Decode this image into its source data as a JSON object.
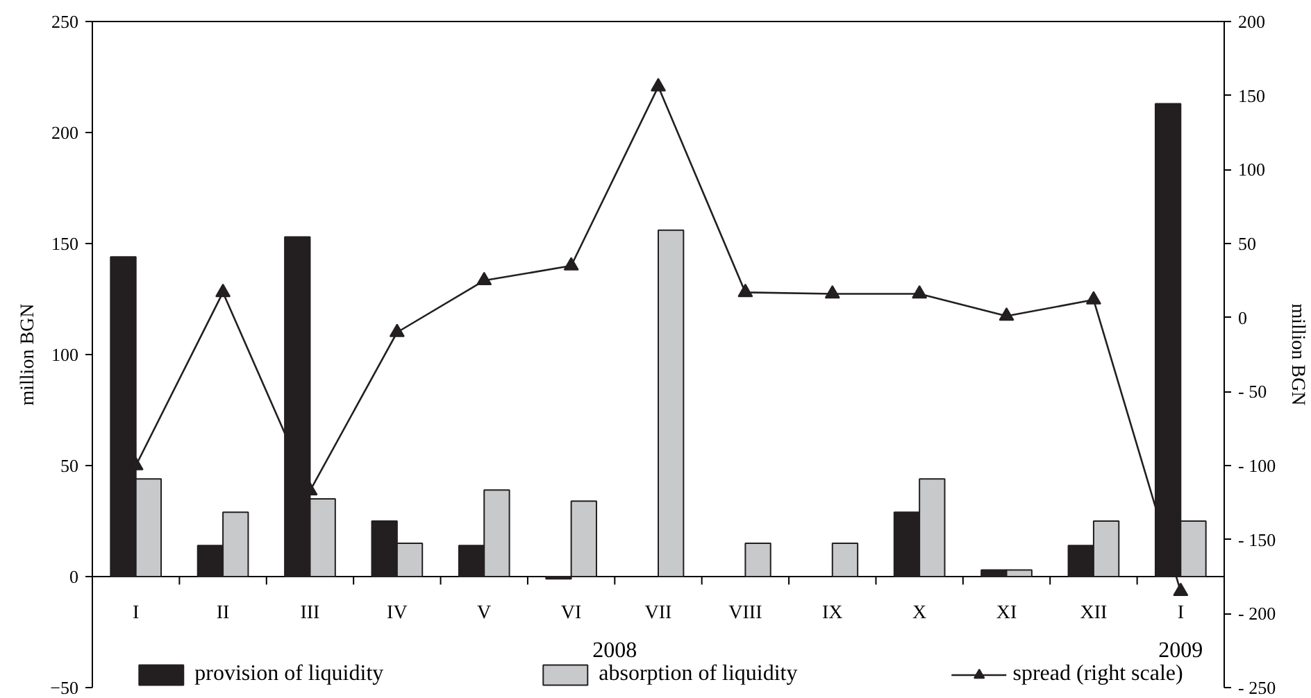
{
  "chart_data": {
    "type": "bar",
    "categories": [
      "I",
      "II",
      "III",
      "IV",
      "V",
      "VI",
      "VII",
      "VIII",
      "IX",
      "X",
      "XI",
      "XII",
      "I"
    ],
    "series": [
      {
        "name": "provision of liquidity",
        "color": "#231f20",
        "values": [
          144,
          14,
          153,
          25,
          14,
          -1,
          null,
          null,
          null,
          29,
          3,
          14,
          213
        ]
      },
      {
        "name": "absorption of liquidity",
        "color": "#c8c9cb",
        "values": [
          44,
          29,
          35,
          15,
          39,
          34,
          156,
          15,
          15,
          44,
          3,
          25,
          25
        ]
      },
      {
        "name": "spread (right scale)",
        "type": "line",
        "axis": "y2",
        "color": "#231f20",
        "marker": "triangle",
        "values": [
          -100,
          17,
          -117,
          -10,
          25,
          35,
          156,
          17,
          16,
          16,
          1,
          12,
          -185
        ]
      }
    ],
    "ylabel": "million BGN",
    "y2label": "million BGN",
    "ylim": [
      -50,
      250
    ],
    "yticks": [
      -50,
      0,
      50,
      100,
      150,
      200,
      250
    ],
    "y2lim": [
      -250,
      200
    ],
    "y2ticks": [
      {
        "value": -250,
        "label": "- 250"
      },
      {
        "value": -200,
        "label": "- 200"
      },
      {
        "value": -150,
        "label": "- 150"
      },
      {
        "value": -100,
        "label": "- 100"
      },
      {
        "value": -50,
        "label": "- 50"
      },
      0,
      50,
      100,
      150,
      200
    ],
    "annotations": [
      "2008",
      "2009"
    ],
    "grid": false,
    "legend": "bottom"
  }
}
